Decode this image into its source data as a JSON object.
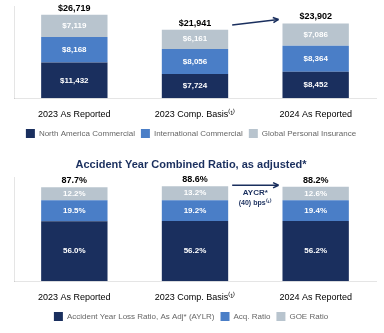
{
  "chart_data": [
    {
      "type": "bar",
      "stacked": true,
      "categories": [
        "2023 As Reported",
        "2023 Comp. Basis⁽¹⁾",
        "2024 As Reported"
      ],
      "series": [
        {
          "name": "North America Commercial",
          "color": "#1a2f5e",
          "values": [
            11432,
            7724,
            8452
          ],
          "value_labels": [
            "$11,432",
            "$7,724",
            "$8,452"
          ]
        },
        {
          "name": "International Commercial",
          "color": "#4a7ec7",
          "values": [
            8168,
            8056,
            8364
          ],
          "value_labels": [
            "$8,168",
            "$8,056",
            "$8,364"
          ]
        },
        {
          "name": "Global Personal Insurance",
          "color": "#b8c4ce",
          "values": [
            7119,
            6161,
            7086
          ],
          "value_labels": [
            "$7,119",
            "$6,161",
            "$7,086"
          ]
        }
      ],
      "data_labels": true,
      "totals": [
        26719,
        21941,
        23902
      ],
      "total_labels": [
        "$26,719",
        "$21,941",
        "$23,902"
      ],
      "ylim": [
        0,
        29500
      ],
      "grid": false,
      "legend": "bottom",
      "tick_labels": "x",
      "arrows": [
        {
          "from": {
            "x": "2023 Comp. Basis⁽¹⁾",
            "y": 23400
          },
          "to": {
            "x": "2024 As Reported",
            "y": 25200
          }
        }
      ]
    },
    {
      "type": "bar",
      "stacked": true,
      "title": "Accident Year Combined Ratio, as adjusted*",
      "categories": [
        "2023 As Reported",
        "2023 Comp. Basis⁽¹⁾",
        "2024 As Reported"
      ],
      "series": [
        {
          "name": "Accident Year Loss Ratio, As Adj* (AYLR)",
          "color": "#1a2f5e",
          "values": [
            56.0,
            56.2,
            56.2
          ],
          "value_labels": [
            "56.0%",
            "56.2%",
            "56.2%"
          ]
        },
        {
          "name": "Acq. Ratio",
          "color": "#4a7ec7",
          "values": [
            19.5,
            19.2,
            19.4
          ],
          "value_labels": [
            "19.5%",
            "19.2%",
            "19.4%"
          ]
        },
        {
          "name": "GOE Ratio",
          "color": "#b8c4ce",
          "values": [
            12.2,
            13.2,
            12.6
          ],
          "value_labels": [
            "12.2%",
            "13.2%",
            "12.6%"
          ]
        }
      ],
      "data_labels": true,
      "totals": [
        87.7,
        88.6,
        88.2
      ],
      "total_labels": [
        "87.7%",
        "88.6%",
        "88.2%"
      ],
      "ylim": [
        0,
        97
      ],
      "grid": false,
      "legend": "bottom",
      "tick_labels": "x",
      "arrows": [
        {
          "from": {
            "x": "2023 Comp. Basis⁽¹⁾",
            "y": 89.5
          },
          "to": {
            "x": "2024 As Reported",
            "y": 89.5
          },
          "text": [
            "AYCR*",
            "(40) bps⁽¹⁾"
          ]
        }
      ]
    }
  ]
}
